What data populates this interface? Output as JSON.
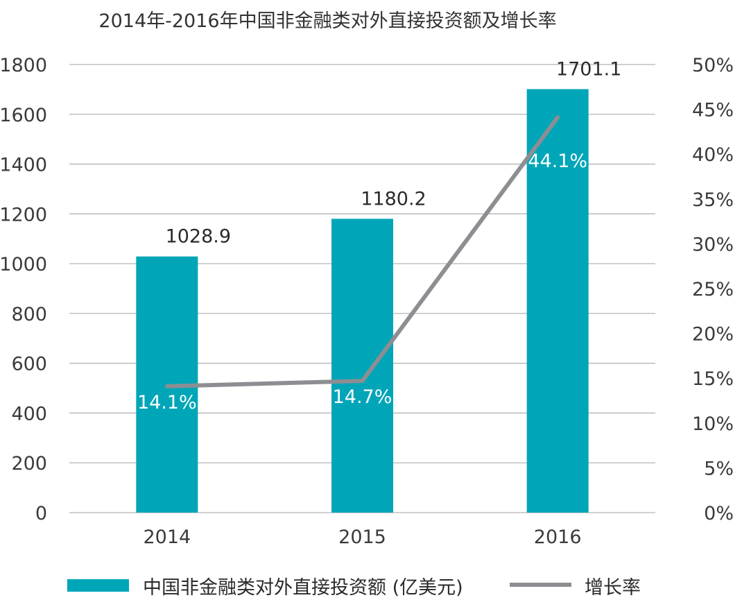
{
  "chart_data": {
    "type": "bar",
    "title": "2014年-2016年中国非金融类对外直接投资额及增长率",
    "categories": [
      "2014",
      "2015",
      "2016"
    ],
    "series": [
      {
        "name": "中国非金融类对外直接投资额 (亿美元)",
        "type": "bar",
        "axis": "left",
        "values": [
          1028.9,
          1180.2,
          1701.1
        ],
        "labels": [
          "1028.9",
          "1180.2",
          "1701.1"
        ]
      },
      {
        "name": "增长率",
        "type": "line",
        "axis": "right",
        "values": [
          14.1,
          14.7,
          44.1
        ],
        "labels": [
          "14.1%",
          "14.7%",
          "44.1%"
        ]
      }
    ],
    "y_left": {
      "ylim": [
        0,
        1800
      ],
      "ticks": [
        "0",
        "200",
        "400",
        "600",
        "800",
        "1000",
        "1200",
        "1400",
        "1600",
        "1800"
      ]
    },
    "y_right": {
      "ylim": [
        0,
        50
      ],
      "ticks": [
        "0%",
        "5%",
        "10%",
        "15%",
        "20%",
        "25%",
        "30%",
        "35%",
        "40%",
        "45%",
        "50%"
      ]
    },
    "grid": true,
    "legend_position": "bottom",
    "colors": {
      "bar": "#00a6b8",
      "line": "#8c8e92",
      "grid": "#b4b4b4",
      "rate_label": "#ffffff"
    }
  }
}
